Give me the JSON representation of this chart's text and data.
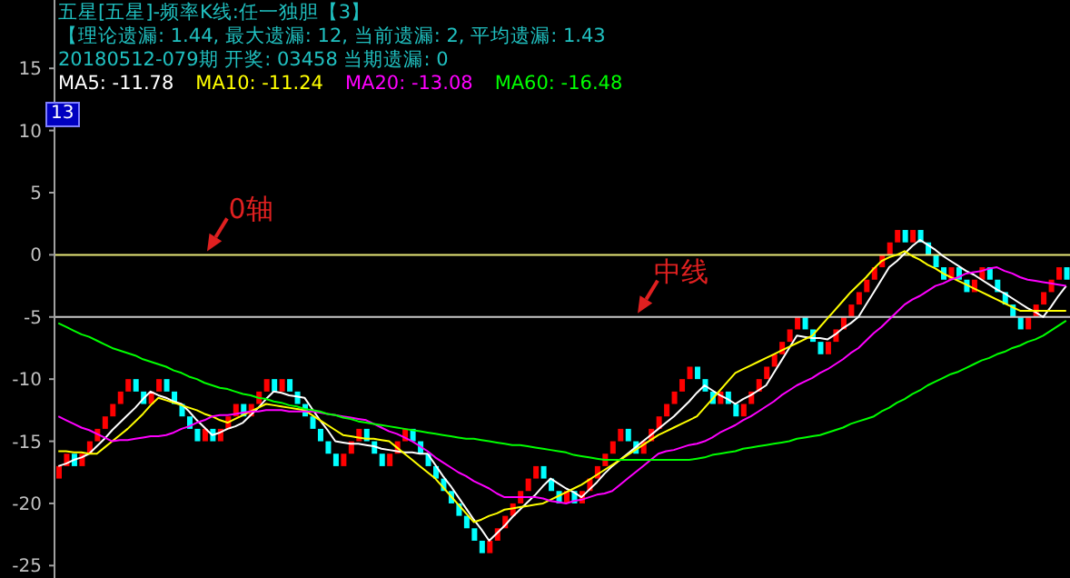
{
  "chart_data": {
    "type": "candlestick",
    "title": "五星[五星]-频率K线:任一独胆【3】",
    "subtitle": "【理论遗漏: 1.44, 最大遗漏: 12, 当前遗漏: 2, 平均遗漏: 1.43",
    "annotations": [
      "20180512-079期 开奖: 03458 当期遗漏: 0",
      "13"
    ],
    "categories": [
      null,
      null,
      null,
      null,
      null,
      null,
      null,
      null,
      null,
      null,
      null,
      null,
      null,
      null,
      null,
      null,
      null,
      null,
      null,
      null,
      null,
      null,
      null,
      null,
      null,
      null,
      null,
      null,
      null,
      null,
      null,
      null,
      null,
      null,
      null,
      null,
      null,
      null,
      null,
      null,
      null,
      null,
      null,
      null,
      null,
      null,
      null,
      null,
      null,
      null,
      null,
      null,
      null,
      null,
      null,
      null,
      null,
      null,
      null,
      null,
      null,
      null,
      null,
      null,
      null,
      null,
      null,
      null,
      null,
      null,
      null,
      null,
      null,
      null,
      null,
      null,
      null,
      null,
      null,
      null,
      null,
      null,
      null,
      null,
      null,
      null,
      null,
      null,
      null,
      null,
      null,
      null,
      null,
      null,
      null,
      null,
      null,
      null,
      null,
      null,
      null,
      null,
      null,
      null,
      null,
      null,
      null,
      null,
      null,
      null,
      null,
      null,
      null,
      null,
      null,
      null,
      null,
      null,
      null,
      null,
      null,
      null,
      null,
      null,
      null,
      null,
      null,
      null,
      null,
      null,
      null,
      null
    ],
    "ohlc": [
      [
        -18,
        -17,
        -18,
        -17
      ],
      [
        -17,
        -16,
        -17,
        -16
      ],
      [
        -16,
        -16,
        -17,
        -17
      ],
      [
        -17,
        -16,
        -17,
        -16
      ],
      [
        -16,
        -15,
        -16,
        -15
      ],
      [
        -15,
        -14,
        -15,
        -14
      ],
      [
        -14,
        -13,
        -14,
        -13
      ],
      [
        -13,
        -12,
        -13,
        -12
      ],
      [
        -12,
        -11,
        -12,
        -11
      ],
      [
        -11,
        -10,
        -11,
        -10
      ],
      [
        -10,
        -10,
        -11,
        -11
      ],
      [
        -11,
        -11,
        -12,
        -12
      ],
      [
        -12,
        -11,
        -12,
        -11
      ],
      [
        -11,
        -10,
        -11,
        -10
      ],
      [
        -10,
        -10,
        -11,
        -11
      ],
      [
        -11,
        -11,
        -12,
        -12
      ],
      [
        -12,
        -12,
        -13,
        -13
      ],
      [
        -13,
        -13,
        -14,
        -14
      ],
      [
        -14,
        -14,
        -15,
        -15
      ],
      [
        -15,
        -14,
        -15,
        -14
      ],
      [
        -14,
        -14,
        -15,
        -15
      ],
      [
        -15,
        -14,
        -15,
        -14
      ],
      [
        -14,
        -13,
        -14,
        -13
      ],
      [
        -13,
        -12,
        -13,
        -12
      ],
      [
        -12,
        -12,
        -13,
        -13
      ],
      [
        -13,
        -12,
        -13,
        -12
      ],
      [
        -12,
        -11,
        -12,
        -11
      ],
      [
        -11,
        -10,
        -11,
        -10
      ],
      [
        -10,
        -10,
        -11,
        -11
      ],
      [
        -11,
        -10,
        -11,
        -10
      ],
      [
        -10,
        -10,
        -11,
        -11
      ],
      [
        -11,
        -11,
        -12,
        -12
      ],
      [
        -12,
        -12,
        -13,
        -13
      ],
      [
        -13,
        -13,
        -14,
        -14
      ],
      [
        -14,
        -14,
        -15,
        -15
      ],
      [
        -15,
        -15,
        -16,
        -16
      ],
      [
        -16,
        -16,
        -17,
        -17
      ],
      [
        -17,
        -16,
        -17,
        -16
      ],
      [
        -16,
        -15,
        -16,
        -15
      ],
      [
        -15,
        -14,
        -15,
        -14
      ],
      [
        -14,
        -14,
        -15,
        -15
      ],
      [
        -15,
        -15,
        -16,
        -16
      ],
      [
        -16,
        -16,
        -17,
        -17
      ],
      [
        -17,
        -16,
        -17,
        -16
      ],
      [
        -16,
        -15,
        -16,
        -15
      ],
      [
        -15,
        -14,
        -15,
        -14
      ],
      [
        -14,
        -14,
        -15,
        -15
      ],
      [
        -15,
        -15,
        -16,
        -16
      ],
      [
        -16,
        -16,
        -17,
        -17
      ],
      [
        -17,
        -17,
        -18,
        -18
      ],
      [
        -18,
        -18,
        -19,
        -19
      ],
      [
        -19,
        -19,
        -20,
        -20
      ],
      [
        -20,
        -20,
        -21,
        -21
      ],
      [
        -21,
        -21,
        -22,
        -22
      ],
      [
        -22,
        -22,
        -23,
        -23
      ],
      [
        -23,
        -23,
        -24,
        -24
      ],
      [
        -24,
        -23,
        -24,
        -23
      ],
      [
        -23,
        -22,
        -23,
        -22
      ],
      [
        -22,
        -21,
        -22,
        -21
      ],
      [
        -21,
        -20,
        -21,
        -20
      ],
      [
        -20,
        -19,
        -20,
        -19
      ],
      [
        -19,
        -18,
        -19,
        -18
      ],
      [
        -18,
        -17,
        -18,
        -17
      ],
      [
        -17,
        -17,
        -18,
        -18
      ],
      [
        -18,
        -18,
        -19,
        -19
      ],
      [
        -19,
        -19,
        -20,
        -20
      ],
      [
        -20,
        -19,
        -20,
        -19
      ],
      [
        -19,
        -19,
        -20,
        -20
      ],
      [
        -20,
        -19,
        -20,
        -19
      ],
      [
        -19,
        -18,
        -19,
        -18
      ],
      [
        -18,
        -17,
        -18,
        -17
      ],
      [
        -17,
        -16,
        -17,
        -16
      ],
      [
        -16,
        -15,
        -16,
        -15
      ],
      [
        -15,
        -14,
        -15,
        -14
      ],
      [
        -14,
        -14,
        -15,
        -15
      ],
      [
        -15,
        -15,
        -16,
        -16
      ],
      [
        -16,
        -15,
        -16,
        -15
      ],
      [
        -15,
        -14,
        -15,
        -14
      ],
      [
        -14,
        -13,
        -14,
        -13
      ],
      [
        -13,
        -12,
        -13,
        -12
      ],
      [
        -12,
        -11,
        -12,
        -11
      ],
      [
        -11,
        -10,
        -11,
        -10
      ],
      [
        -10,
        -9,
        -10,
        -9
      ],
      [
        -9,
        -9,
        -10,
        -10
      ],
      [
        -10,
        -10,
        -11,
        -11
      ],
      [
        -11,
        -11,
        -12,
        -12
      ],
      [
        -12,
        -11,
        -12,
        -11
      ],
      [
        -11,
        -11,
        -12,
        -12
      ],
      [
        -12,
        -12,
        -13,
        -13
      ],
      [
        -13,
        -12,
        -13,
        -12
      ],
      [
        -12,
        -11,
        -12,
        -11
      ],
      [
        -11,
        -10,
        -11,
        -10
      ],
      [
        -10,
        -9,
        -10,
        -9
      ],
      [
        -9,
        -8,
        -9,
        -8
      ],
      [
        -8,
        -7,
        -8,
        -7
      ],
      [
        -7,
        -6,
        -7,
        -6
      ],
      [
        -6,
        -5,
        -6,
        -5
      ],
      [
        -5,
        -5,
        -6,
        -6
      ],
      [
        -6,
        -6,
        -7,
        -7
      ],
      [
        -7,
        -7,
        -8,
        -8
      ],
      [
        -8,
        -7,
        -8,
        -7
      ],
      [
        -7,
        -6,
        -7,
        -6
      ],
      [
        -6,
        -5,
        -6,
        -5
      ],
      [
        -5,
        -4,
        -5,
        -4
      ],
      [
        -4,
        -3,
        -4,
        -3
      ],
      [
        -3,
        -2,
        -3,
        -2
      ],
      [
        -2,
        -1,
        -2,
        -1
      ],
      [
        -1,
        0,
        -1,
        0
      ],
      [
        0,
        1,
        0,
        1
      ],
      [
        1,
        2,
        1,
        2
      ],
      [
        2,
        2,
        1,
        1
      ],
      [
        1,
        2,
        1,
        2
      ],
      [
        2,
        2,
        1,
        1
      ],
      [
        1,
        1,
        0,
        0
      ],
      [
        0,
        0,
        -1,
        -1
      ],
      [
        -1,
        -1,
        -2,
        -2
      ],
      [
        -2,
        -1,
        -2,
        -1
      ],
      [
        -1,
        -1,
        -2,
        -2
      ],
      [
        -2,
        -2,
        -3,
        -3
      ],
      [
        -3,
        -2,
        -3,
        -2
      ],
      [
        -2,
        -1,
        -2,
        -1
      ],
      [
        -1,
        -1,
        -2,
        -2
      ],
      [
        -2,
        -2,
        -3,
        -3
      ],
      [
        -3,
        -3,
        -4,
        -4
      ],
      [
        -4,
        -4,
        -5,
        -5
      ],
      [
        -5,
        -5,
        -6,
        -6
      ],
      [
        -6,
        -5,
        -6,
        -5
      ],
      [
        -5,
        -4,
        -5,
        -4
      ],
      [
        -4,
        -3,
        -4,
        -3
      ],
      [
        -3,
        -2,
        -3,
        -2
      ],
      [
        -2,
        -1,
        -2,
        -1
      ],
      [
        -1,
        -1,
        -2,
        -2
      ]
    ],
    "colors": [
      "#ff0000",
      "#ff0000",
      "#00ffff",
      "#ff0000",
      "#ff0000",
      "#ff0000",
      "#ff0000",
      "#ff0000",
      "#ff0000",
      "#ff0000",
      "#00ffff",
      "#00ffff",
      "#ff0000",
      "#ff0000",
      "#00ffff",
      "#00ffff",
      "#00ffff",
      "#00ffff",
      "#00ffff",
      "#ff0000",
      "#00ffff",
      "#ff0000",
      "#ff0000",
      "#ff0000",
      "#00ffff",
      "#ff0000",
      "#ff0000",
      "#ff0000",
      "#00ffff",
      "#ff0000",
      "#00ffff",
      "#00ffff",
      "#00ffff",
      "#00ffff",
      "#00ffff",
      "#00ffff",
      "#00ffff",
      "#ff0000",
      "#ff0000",
      "#ff0000",
      "#00ffff",
      "#00ffff",
      "#00ffff",
      "#ff0000",
      "#ff0000",
      "#ff0000",
      "#00ffff",
      "#00ffff",
      "#00ffff",
      "#00ffff",
      "#00ffff",
      "#00ffff",
      "#00ffff",
      "#00ffff",
      "#00ffff",
      "#00ffff",
      "#ff0000",
      "#ff0000",
      "#ff0000",
      "#ff0000",
      "#ff0000",
      "#ff0000",
      "#ff0000",
      "#00ffff",
      "#00ffff",
      "#00ffff",
      "#ff0000",
      "#00ffff",
      "#ff0000",
      "#ff0000",
      "#ff0000",
      "#ff0000",
      "#ff0000",
      "#ff0000",
      "#00ffff",
      "#00ffff",
      "#ff0000",
      "#ff0000",
      "#ff0000",
      "#ff0000",
      "#ff0000",
      "#ff0000",
      "#ff0000",
      "#00ffff",
      "#00ffff",
      "#00ffff",
      "#ff0000",
      "#00ffff",
      "#00ffff",
      "#ff0000",
      "#ff0000",
      "#ff0000",
      "#ff0000",
      "#ff0000",
      "#ff0000",
      "#ff0000",
      "#ff0000",
      "#00ffff",
      "#00ffff",
      "#00ffff",
      "#ff0000",
      "#ff0000",
      "#ff0000",
      "#ff0000",
      "#ff0000",
      "#ff0000",
      "#ff0000",
      "#ff0000",
      "#ff0000",
      "#ff0000",
      "#00ffff",
      "#ff0000",
      "#00ffff",
      "#00ffff",
      "#00ffff",
      "#00ffff",
      "#ff0000",
      "#00ffff",
      "#00ffff",
      "#ff0000",
      "#ff0000",
      "#00ffff",
      "#00ffff",
      "#00ffff",
      "#00ffff",
      "#00ffff",
      "#ff0000",
      "#ff0000",
      "#ff0000",
      "#ff0000",
      "#ff0000",
      "#00ffff"
    ],
    "series": [
      {
        "type": "line",
        "name": "MA5: -11.78",
        "color": "#ffffff",
        "values": [
          -17,
          -16.8,
          -16.5,
          -16.3,
          -16,
          -15.4,
          -14.8,
          -14.1,
          -13.5,
          -12.9,
          -12.3,
          -11.6,
          -11,
          -11.3,
          -11.5,
          -11.8,
          -12,
          -12.6,
          -13.3,
          -13.9,
          -14.5,
          -14.3,
          -14,
          -13.8,
          -13.5,
          -12.9,
          -12.3,
          -11.6,
          -11,
          -11.1,
          -11.3,
          -11.4,
          -11.5,
          -12.4,
          -13.3,
          -14.1,
          -15,
          -15.1,
          -15.2,
          -15.2,
          -15.3,
          -15.4,
          -15.6,
          -15.7,
          -15.8,
          -15.9,
          -15.9,
          -16,
          -16,
          -16.9,
          -17.8,
          -18.6,
          -19.5,
          -20.4,
          -21.3,
          -22.1,
          -23,
          -22.4,
          -21.8,
          -21.1,
          -20.5,
          -19.9,
          -19.3,
          -18.6,
          -18,
          -18.4,
          -18.8,
          -19.1,
          -19.5,
          -18.9,
          -18.3,
          -17.6,
          -17,
          -16.5,
          -16,
          -15.5,
          -15,
          -14.5,
          -14,
          -13.5,
          -13,
          -12.4,
          -11.8,
          -11.1,
          -10.5,
          -10.9,
          -11.3,
          -11.6,
          -12,
          -11.6,
          -11.3,
          -10.9,
          -10.5,
          -9.5,
          -8.5,
          -7.5,
          -6.5,
          -6.6,
          -6.7,
          -6.7,
          -6.8,
          -6.4,
          -5.9,
          -5.5,
          -5,
          -4,
          -3,
          -2,
          -1,
          -0.5,
          0.1,
          0.7,
          1.2,
          0.8,
          0.4,
          -0.1,
          -0.5,
          -0.9,
          -1.3,
          -1.6,
          -2,
          -2.4,
          -2.8,
          -3.1,
          -3.5,
          -3.9,
          -4.3,
          -4.6,
          -5,
          -4.2,
          -3.3,
          -2.5
        ]
      },
      {
        "type": "line",
        "name": "MA10: -11.24",
        "color": "#ffff00",
        "values": [
          -15.8,
          -15.8,
          -15.9,
          -15.9,
          -16,
          -16,
          -15.5,
          -15,
          -14.5,
          -14,
          -13.4,
          -12.8,
          -12.1,
          -11.5,
          -11.7,
          -11.9,
          -12.1,
          -12.3,
          -12.5,
          -12.8,
          -13,
          -13.3,
          -13.5,
          -13.2,
          -12.9,
          -12.6,
          -12.3,
          -12,
          -12.1,
          -12.2,
          -12.3,
          -12.4,
          -12.5,
          -12.9,
          -13.3,
          -13.7,
          -14.1,
          -14.5,
          -14.6,
          -14.7,
          -14.8,
          -14.8,
          -14.9,
          -15,
          -15.5,
          -16,
          -16.5,
          -17,
          -17.5,
          -18,
          -18.7,
          -19.4,
          -20.1,
          -20.8,
          -21.5,
          -21.3,
          -21,
          -20.8,
          -20.5,
          -20.4,
          -20.3,
          -20.2,
          -20.1,
          -20,
          -19.7,
          -19.4,
          -19.1,
          -18.8,
          -18.5,
          -18.1,
          -17.7,
          -17.3,
          -16.9,
          -16.5,
          -16.1,
          -15.7,
          -15.3,
          -14.9,
          -14.5,
          -14.2,
          -13.9,
          -13.6,
          -13.3,
          -13,
          -12.3,
          -11.6,
          -10.9,
          -10.2,
          -9.5,
          -9.2,
          -8.9,
          -8.6,
          -8.3,
          -8,
          -7.7,
          -7.4,
          -7.1,
          -6.8,
          -6.5,
          -5.8,
          -5.1,
          -4.4,
          -3.7,
          -3,
          -2.4,
          -1.8,
          -1.1,
          -0.5,
          -0.2,
          0,
          0.3,
          -0.1,
          -0.4,
          -0.8,
          -1.1,
          -1.5,
          -1.8,
          -2.1,
          -2.4,
          -2.7,
          -3,
          -3.3,
          -3.6,
          -3.9,
          -4.2,
          -4.5,
          -4.5,
          -4.5,
          -4.5,
          -4.5,
          -4.5,
          -4.5
        ]
      },
      {
        "type": "line",
        "name": "MA20: -13.08",
        "color": "#ff00ff",
        "values": [
          -13,
          -13.3,
          -13.6,
          -13.9,
          -14.1,
          -14.4,
          -14.7,
          -15,
          -14.9,
          -14.9,
          -14.8,
          -14.7,
          -14.6,
          -14.6,
          -14.5,
          -14.3,
          -14,
          -13.8,
          -13.5,
          -13.3,
          -13,
          -12.9,
          -12.9,
          -12.8,
          -12.7,
          -12.6,
          -12.6,
          -12.5,
          -12.5,
          -12.5,
          -12.6,
          -12.6,
          -12.6,
          -12.6,
          -12.7,
          -12.8,
          -12.9,
          -13,
          -13.1,
          -13.2,
          -13.3,
          -13.6,
          -13.9,
          -14.2,
          -14.4,
          -14.7,
          -15,
          -15.4,
          -15.8,
          -16.3,
          -16.7,
          -17.1,
          -17.5,
          -17.8,
          -18.2,
          -18.5,
          -18.8,
          -19.2,
          -19.5,
          -19.5,
          -19.5,
          -19.5,
          -19.5,
          -19.6,
          -19.8,
          -19.9,
          -20,
          -19.8,
          -19.7,
          -19.5,
          -19.3,
          -19.2,
          -19,
          -18.5,
          -18,
          -17.5,
          -17,
          -16.5,
          -16,
          -15.8,
          -15.7,
          -15.5,
          -15.3,
          -15.2,
          -15,
          -14.7,
          -14.3,
          -14,
          -13.7,
          -13.3,
          -13,
          -12.6,
          -12.2,
          -11.8,
          -11.3,
          -10.9,
          -10.5,
          -10.2,
          -9.9,
          -9.5,
          -9.2,
          -8.8,
          -8.4,
          -7.9,
          -7.5,
          -6.9,
          -6.3,
          -5.8,
          -5.2,
          -4.6,
          -4,
          -3.6,
          -3.3,
          -2.9,
          -2.5,
          -2.3,
          -2,
          -1.8,
          -1.5,
          -1.4,
          -1.3,
          -1.1,
          -1,
          -1.3,
          -1.5,
          -1.8,
          -2,
          -2.1,
          -2.2,
          -2.3,
          -2.4,
          -2.5
        ]
      },
      {
        "type": "line",
        "name": "MA60: -16.48",
        "color": "#00ff00",
        "values": [
          -5.5,
          -5.8,
          -6.1,
          -6.4,
          -6.6,
          -6.9,
          -7.2,
          -7.5,
          -7.7,
          -7.9,
          -8.1,
          -8.4,
          -8.6,
          -8.8,
          -9,
          -9.3,
          -9.5,
          -9.8,
          -10,
          -10.3,
          -10.5,
          -10.7,
          -10.8,
          -11,
          -11.2,
          -11.3,
          -11.5,
          -11.6,
          -11.8,
          -11.9,
          -12.1,
          -12.2,
          -12.4,
          -12.5,
          -12.6,
          -12.8,
          -12.9,
          -13.1,
          -13.2,
          -13.4,
          -13.5,
          -13.6,
          -13.7,
          -13.8,
          -13.9,
          -14,
          -14.1,
          -14.2,
          -14.3,
          -14.4,
          -14.5,
          -14.6,
          -14.7,
          -14.8,
          -14.8,
          -14.9,
          -15,
          -15.1,
          -15.2,
          -15.3,
          -15.3,
          -15.4,
          -15.5,
          -15.6,
          -15.7,
          -15.8,
          -15.9,
          -16.1,
          -16.2,
          -16.3,
          -16.4,
          -16.5,
          -16.5,
          -16.5,
          -16.5,
          -16.5,
          -16.5,
          -16.5,
          -16.5,
          -16.5,
          -16.5,
          -16.5,
          -16.5,
          -16.4,
          -16.3,
          -16.1,
          -16,
          -15.9,
          -15.8,
          -15.6,
          -15.5,
          -15.4,
          -15.3,
          -15.2,
          -15.1,
          -15,
          -14.8,
          -14.7,
          -14.6,
          -14.5,
          -14.3,
          -14.1,
          -13.9,
          -13.6,
          -13.4,
          -13.2,
          -13,
          -12.6,
          -12.3,
          -11.9,
          -11.6,
          -11.2,
          -10.9,
          -10.5,
          -10.2,
          -9.9,
          -9.6,
          -9.4,
          -9.1,
          -8.8,
          -8.5,
          -8.3,
          -8,
          -7.8,
          -7.5,
          -7.3,
          -7,
          -6.8,
          -6.5,
          -6.1,
          -5.7,
          -5.3
        ]
      }
    ],
    "ref_lines": [
      {
        "axis": "y",
        "value": 0,
        "label": "0轴",
        "color": "#e8e878"
      },
      {
        "axis": "y",
        "value": -5,
        "label": "中线",
        "color": "#c8c8c8"
      }
    ],
    "ylim": [
      -26,
      20.5
    ],
    "yticks": [
      15,
      10,
      5,
      0,
      -5,
      -10,
      -15,
      -20,
      -25
    ],
    "tick_labels": "y",
    "legend": "top left",
    "marker": "none",
    "line_style": "solid"
  }
}
